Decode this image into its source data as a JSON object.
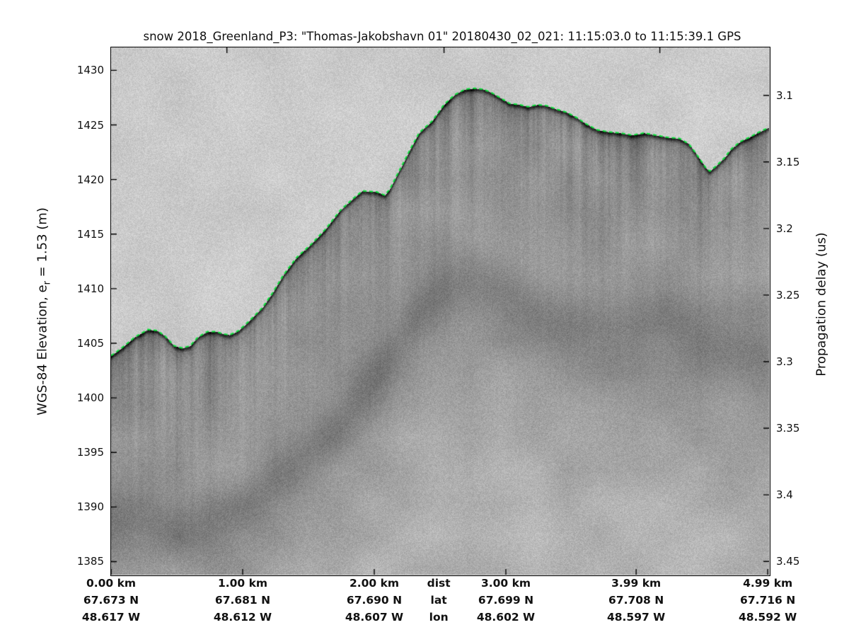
{
  "chart_data": {
    "type": "heatmap",
    "subtype": "airborne-snow-radar-echogram",
    "title": "snow 2018_Greenland_P3: \"Thomas-Jakobshavn 01\"  20180430_02_021: 11:15:03.0 to 11:15:39.1 GPS",
    "ylabel_left": {
      "pre": "WGS-84 Elevation, e",
      "sub": "r",
      "post": " = 1.53 (m)"
    },
    "ylabel_right": "Propagation delay (us)",
    "x_axis_row_labels": [
      "dist",
      "lat",
      "lon"
    ],
    "x_range_km": [
      0,
      5.0
    ],
    "elevation_range_m": [
      1383.8,
      1432.1
    ],
    "delay_range_us": [
      3.064,
      3.46
    ],
    "left_ticks_m": [
      1430,
      1425,
      1420,
      1415,
      1410,
      1405,
      1400,
      1395,
      1390,
      1385
    ],
    "right_ticks_us": [
      "3.1",
      "3.15",
      "3.2",
      "3.25",
      "3.3",
      "3.35",
      "3.4",
      "3.45"
    ],
    "bottom_columns": [
      {
        "km": 0.0,
        "lines": [
          "0.00 km",
          "67.673 N",
          "48.617 W"
        ]
      },
      {
        "km": 1.0,
        "lines": [
          "1.00 km",
          "67.681 N",
          "48.612 W"
        ]
      },
      {
        "km": 2.0,
        "lines": [
          "2.00 km",
          "67.690 N",
          "48.607 W"
        ]
      },
      {
        "km": 2.49,
        "lines": [
          "dist",
          "lat",
          "lon"
        ]
      },
      {
        "km": 3.0,
        "lines": [
          "3.00 km",
          "67.699 N",
          "48.602 W"
        ]
      },
      {
        "km": 3.99,
        "lines": [
          "3.99 km",
          "67.708 N",
          "48.597 W"
        ]
      },
      {
        "km": 4.99,
        "lines": [
          "4.99 km",
          "67.716 N",
          "48.592 W"
        ]
      }
    ],
    "bottom_tick_km": [
      0,
      1.0,
      2.0,
      3.0,
      3.99,
      4.99
    ],
    "top_tick_km": [
      0.88,
      2.53,
      4.17
    ],
    "surface_profile": {
      "distance_km": [
        0.0,
        0.08,
        0.18,
        0.28,
        0.35,
        0.41,
        0.48,
        0.54,
        0.6,
        0.66,
        0.73,
        0.8,
        0.85,
        0.9,
        0.97,
        1.06,
        1.15,
        1.23,
        1.31,
        1.41,
        1.52,
        1.63,
        1.74,
        1.84,
        1.91,
        2.02,
        2.08,
        2.12,
        2.17,
        2.21,
        2.26,
        2.34,
        2.44,
        2.53,
        2.61,
        2.69,
        2.76,
        2.83,
        2.89,
        2.96,
        3.03,
        3.1,
        3.17,
        3.24,
        3.31,
        3.38,
        3.46,
        3.54,
        3.6,
        3.69,
        3.78,
        3.87,
        3.96,
        4.05,
        4.14,
        4.23,
        4.32,
        4.39,
        4.44,
        4.52,
        4.55,
        4.6,
        4.66,
        4.71,
        4.78,
        4.85,
        4.91,
        4.98,
        5.0
      ],
      "elevation_m": [
        1403.8,
        1404.5,
        1405.5,
        1406.2,
        1406.1,
        1405.6,
        1404.7,
        1404.5,
        1404.7,
        1405.5,
        1406.0,
        1406.0,
        1405.8,
        1405.7,
        1406.1,
        1407.1,
        1408.2,
        1409.6,
        1411.2,
        1412.8,
        1414.0,
        1415.4,
        1417.1,
        1418.2,
        1418.9,
        1418.8,
        1418.5,
        1419.1,
        1420.3,
        1421.2,
        1422.4,
        1424.2,
        1425.3,
        1426.8,
        1427.7,
        1428.2,
        1428.3,
        1428.2,
        1427.9,
        1427.4,
        1426.9,
        1426.8,
        1426.6,
        1426.8,
        1426.7,
        1426.4,
        1426.1,
        1425.6,
        1425.1,
        1424.5,
        1424.3,
        1424.2,
        1424.0,
        1424.2,
        1424.0,
        1423.8,
        1423.7,
        1423.2,
        1422.4,
        1421.0,
        1420.7,
        1421.2,
        1421.9,
        1422.7,
        1423.4,
        1423.8,
        1424.2,
        1424.6,
        1424.7
      ]
    },
    "subsurface_reflector": {
      "distance_km": [
        0.0,
        0.3,
        0.6,
        0.9,
        1.1,
        1.31,
        1.5,
        1.67,
        1.85,
        2.02,
        2.2,
        2.4,
        2.55,
        2.7,
        2.85,
        3.0,
        3.2,
        3.4,
        3.6,
        3.8,
        4.0,
        4.2,
        4.4,
        4.6,
        4.8,
        5.0
      ],
      "elevation_m": [
        1388.1,
        1387.9,
        1387.8,
        1388.8,
        1390.4,
        1392.7,
        1394.9,
        1396.9,
        1399.5,
        1402.1,
        1405.3,
        1408.6,
        1410.2,
        1410.9,
        1410.2,
        1409.2,
        1407.9,
        1406.9,
        1406.3,
        1405.6,
        1405.9,
        1406.3,
        1405.6,
        1404.6,
        1403.9,
        1403.2
      ]
    },
    "colors": {
      "surface_line": "#0be33a",
      "plot_border": "#000000",
      "background": "#ffffff",
      "text": "#111111"
    },
    "shading": {
      "above_surface_gray": 203,
      "below_surface_gray": 152,
      "surface_return_darkening": 74,
      "subsurface_zone_darkening": 34,
      "reflector_band_darkening": 27,
      "deep_lightening_max": 27,
      "noise_amplitude": 32
    }
  }
}
